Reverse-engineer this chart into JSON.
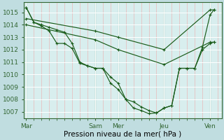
{
  "bg_color": "#c0dde0",
  "plot_bg_color": "#d8eeee",
  "grid_major_color": "#ffffff",
  "grid_minor_color": "#e8b8b8",
  "line_color": "#1a5c1a",
  "xlabel": "Pression niveau de la mer( hPa )",
  "ylim": [
    1006.5,
    1015.8
  ],
  "yticks": [
    1007,
    1008,
    1009,
    1010,
    1011,
    1012,
    1013,
    1014,
    1015
  ],
  "xlabel_fontsize": 7.5,
  "ylabel_fontsize": 6.5,
  "xtick_labels": [
    "Mar",
    "Sam",
    "Mer",
    "Jeu",
    "Ven"
  ],
  "xtick_positions": [
    0,
    9,
    12,
    18,
    24
  ],
  "xlim": [
    -0.3,
    25.5
  ],
  "line1_x": [
    0,
    1,
    2,
    3,
    4,
    5,
    6,
    7,
    8,
    9,
    10,
    11,
    12,
    13,
    14,
    15,
    16,
    17,
    18,
    19,
    20,
    21,
    22,
    23,
    24,
    24.5
  ],
  "line1_y": [
    1015.4,
    1014.2,
    1014.0,
    1013.8,
    1013.6,
    1013.4,
    1012.5,
    1011.0,
    1010.7,
    1010.5,
    1010.5,
    1009.8,
    1009.3,
    1008.0,
    1007.8,
    1007.4,
    1007.1,
    1006.9,
    1007.3,
    1007.5,
    1010.5,
    1010.5,
    1010.5,
    1012.2,
    1014.8,
    1015.2
  ],
  "line2_x": [
    0,
    1,
    2,
    3,
    4,
    5,
    6,
    7,
    8,
    9,
    10,
    11,
    12,
    13,
    14,
    15,
    16,
    17,
    18,
    19,
    20,
    21,
    22,
    23,
    24,
    24.5
  ],
  "line2_y": [
    1015.4,
    1014.2,
    1013.9,
    1013.5,
    1012.5,
    1012.5,
    1012.1,
    1010.9,
    1010.7,
    1010.5,
    1010.5,
    1009.3,
    1008.8,
    1008.0,
    1007.3,
    1007.1,
    1006.85,
    1006.9,
    1007.3,
    1007.5,
    1010.5,
    1010.5,
    1010.5,
    1012.0,
    1012.5,
    1012.6
  ],
  "line3_x": [
    0,
    9,
    12,
    18,
    24,
    24.5
  ],
  "line3_y": [
    1014.5,
    1013.5,
    1013.0,
    1012.0,
    1015.2,
    1015.2
  ],
  "line4_x": [
    0,
    9,
    12,
    18,
    24,
    24.5
  ],
  "line4_y": [
    1014.0,
    1012.8,
    1012.0,
    1010.8,
    1012.6,
    1012.6
  ],
  "spine_color": "#336633",
  "tick_color": "#336633"
}
